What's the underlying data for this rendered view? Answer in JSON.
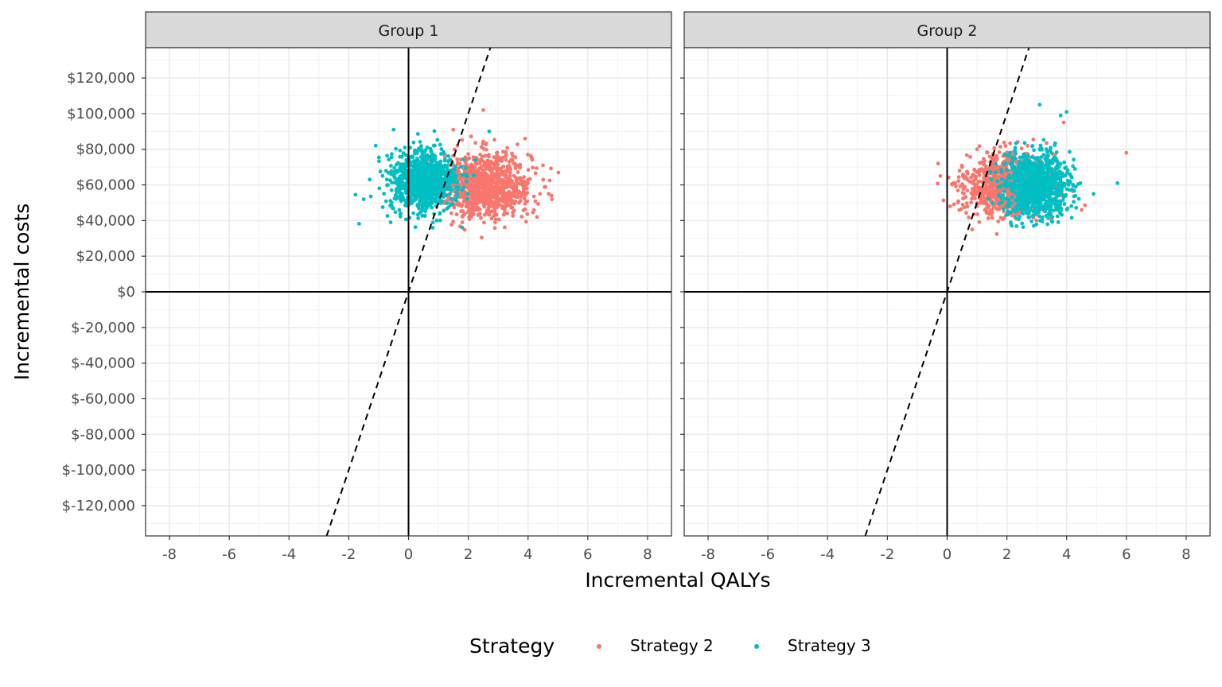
{
  "chart_data": {
    "type": "scatter",
    "facets": [
      "Group 1",
      "Group 2"
    ],
    "xlabel": "Incremental QALYs",
    "ylabel": "Incremental costs",
    "xlim": [
      -8.8,
      8.8
    ],
    "ylim": [
      -137000,
      137000
    ],
    "x_ticks": [
      -8,
      -6,
      -4,
      -2,
      0,
      2,
      4,
      6,
      8
    ],
    "x_tick_labels": [
      "-8",
      "-6",
      "-4",
      "-2",
      "0",
      "2",
      "4",
      "6",
      "8"
    ],
    "y_ticks": [
      120000,
      100000,
      80000,
      60000,
      40000,
      20000,
      0,
      -20000,
      -40000,
      -60000,
      -80000,
      -100000,
      -120000
    ],
    "y_tick_labels": [
      "$120,000",
      "$100,000",
      "$80,000",
      "$60,000",
      "$40,000",
      "$20,000",
      "$0",
      "$-20,000",
      "$-40,000",
      "$-60,000",
      "$-80,000",
      "$-100,000",
      "$-120,000"
    ],
    "grid": true,
    "wtp_line_slope": 50000,
    "legend": {
      "title": "Strategy",
      "position": "bottom",
      "entries": [
        {
          "name": "Strategy 2",
          "color": "#F8766D"
        },
        {
          "name": "Strategy 3",
          "color": "#00BFC4"
        }
      ]
    },
    "series": [
      {
        "name": "Strategy 2",
        "color": "#F8766D",
        "groups": {
          "Group 1": {
            "n": 1000,
            "mean_x": 2.6,
            "sd_x": 0.75,
            "mean_y": 60000,
            "sd_y": 9000,
            "outliers": [
              [
                2.5,
                102000
              ],
              [
                4.5,
                71000
              ],
              [
                3.9,
                86000
              ],
              [
                4.3,
                42000
              ],
              [
                2.9,
                39000
              ],
              [
                1.8,
                39000
              ],
              [
                4.4,
                55000
              ],
              [
                1.5,
                91000
              ]
            ]
          },
          "Group 2": {
            "n": 1000,
            "mean_x": 2.0,
            "sd_x": 0.7,
            "mean_y": 60000,
            "sd_y": 8500,
            "outliers": [
              [
                6.0,
                78000
              ],
              [
                -0.3,
                72000
              ],
              [
                0.1,
                48000
              ],
              [
                3.9,
                95000
              ],
              [
                4.5,
                46000
              ],
              [
                1.0,
                80000
              ],
              [
                0.5,
                70000
              ]
            ]
          }
        }
      },
      {
        "name": "Strategy 3",
        "color": "#00BFC4",
        "groups": {
          "Group 1": {
            "n": 1000,
            "mean_x": 0.5,
            "sd_x": 0.55,
            "mean_y": 62000,
            "sd_y": 8500,
            "outliers": [
              [
                -0.5,
                91000
              ],
              [
                2.7,
                90000
              ],
              [
                1.8,
                36000
              ],
              [
                -1.5,
                52000
              ],
              [
                -1.3,
                63000
              ],
              [
                -1.1,
                82000
              ],
              [
                -0.6,
                39000
              ]
            ]
          },
          "Group 2": {
            "n": 1000,
            "mean_x": 3.0,
            "sd_x": 0.55,
            "mean_y": 60000,
            "sd_y": 8500,
            "outliers": [
              [
                3.1,
                105000
              ],
              [
                4.0,
                101000
              ],
              [
                3.8,
                99000
              ],
              [
                5.7,
                61000
              ],
              [
                4.9,
                55000
              ],
              [
                2.9,
                37000
              ],
              [
                1.8,
                59000
              ]
            ]
          }
        }
      }
    ]
  }
}
